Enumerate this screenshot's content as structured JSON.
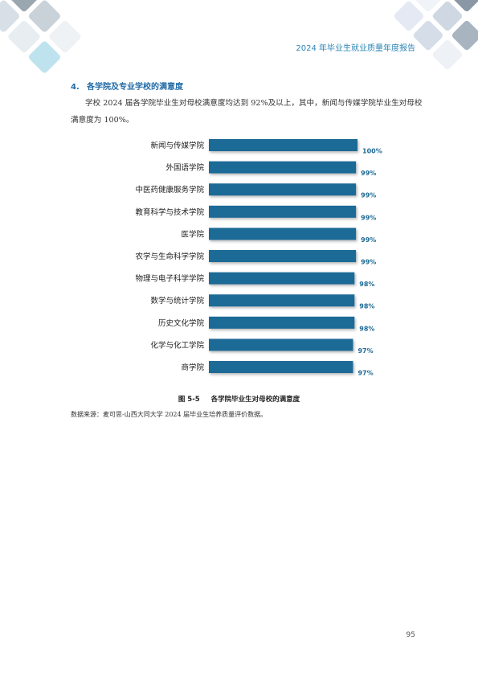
{
  "header": {
    "running_title": "2024 年毕业生就业质量年度报告"
  },
  "section": {
    "number": "4.",
    "title": "各学院及专业学校的满意度",
    "paragraph": "学校 2024 届各学院毕业生对母校满意度均达到 92%及以上，其中，新闻与传媒学院毕业生对母校满意度为 100%。"
  },
  "chart_data": {
    "type": "bar",
    "orientation": "horizontal",
    "categories": [
      "新闻与传媒学院",
      "外国语学院",
      "中医药健康服务学院",
      "教育科学与技术学院",
      "医学院",
      "农学与生命科学学院",
      "物理与电子科学学院",
      "数学与统计学院",
      "历史文化学院",
      "化学与化工学院",
      "商学院"
    ],
    "values": [
      100,
      99,
      99,
      99,
      99,
      99,
      98,
      98,
      98,
      97,
      97
    ],
    "value_labels": [
      "100%",
      "99%",
      "99%",
      "99%",
      "99%",
      "99%",
      "98%",
      "98%",
      "98%",
      "97%",
      "97%"
    ],
    "xlim": [
      0,
      100
    ],
    "bar_color": "#1e6a96",
    "label_color": "#1e6a96"
  },
  "figure": {
    "number": "图 5-5",
    "caption": "各学院毕业生对母校的满意度"
  },
  "source": "数据来源：麦可思-山西大同大学 2024 届毕业生培养质量评价数据。",
  "page_number": "95"
}
